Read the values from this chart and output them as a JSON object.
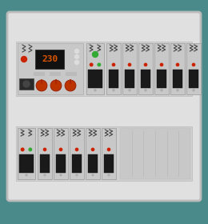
{
  "bg_color": "#4a8a8a",
  "panel_color": "#e0e0e0",
  "panel_edge": "#c8c8c8",
  "rail_color": "#cccccc",
  "breaker_body": "#c0c0c0",
  "breaker_handle": "#1a1a1a",
  "red_dot": "#cc2200",
  "green_dot": "#33aa33",
  "orange_display": "#dd5500",
  "display_bg": "#111111",
  "wire_color": "#444444",
  "knob_color": "#bb3300",
  "relay_section_color": "#c8c8c8",
  "empty_slot_color": "#c8c8c8"
}
